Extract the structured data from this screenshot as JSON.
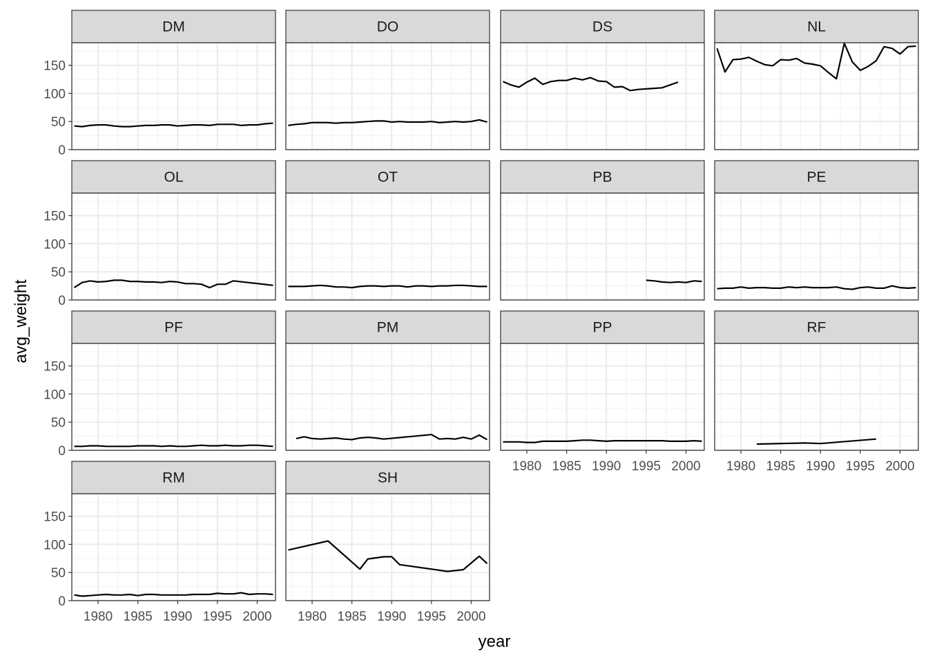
{
  "chart_data": {
    "type": "line",
    "layout": "facet_wrap",
    "ncol": 4,
    "xlabel": "year",
    "ylabel": "avg_weight",
    "xlim": [
      1976.7,
      2002.3
    ],
    "ylim": [
      0,
      190
    ],
    "xticks": [
      1980,
      1985,
      1990,
      1995,
      2000
    ],
    "yticks": [
      0,
      50,
      100,
      150
    ],
    "grid": true,
    "colors": {
      "line": "#000000",
      "panel_border": "#333333",
      "strip_fill": "#d9d9d9",
      "grid_major": "#ebebeb",
      "grid_minor": "#f2f2f2",
      "tick_text": "#4d4d4d"
    },
    "panels": [
      {
        "label": "DM",
        "x": [
          1977,
          1978,
          1979,
          1980,
          1981,
          1982,
          1983,
          1984,
          1985,
          1986,
          1987,
          1988,
          1989,
          1990,
          1991,
          1992,
          1993,
          1994,
          1995,
          1996,
          1997,
          1998,
          1999,
          2000,
          2001,
          2002
        ],
        "y": [
          42,
          41,
          43,
          44,
          44,
          42,
          41,
          41,
          42,
          43,
          43,
          44,
          44,
          42,
          43,
          44,
          44,
          43,
          45,
          45,
          45,
          43,
          44,
          44,
          46,
          47
        ]
      },
      {
        "label": "DO",
        "x": [
          1977,
          1978,
          1979,
          1980,
          1981,
          1982,
          1983,
          1984,
          1985,
          1986,
          1987,
          1988,
          1989,
          1990,
          1991,
          1992,
          1993,
          1994,
          1995,
          1996,
          1997,
          1998,
          1999,
          2000,
          2001,
          2002
        ],
        "y": [
          43,
          45,
          46,
          48,
          48,
          48,
          47,
          48,
          48,
          49,
          50,
          51,
          51,
          49,
          50,
          49,
          49,
          49,
          50,
          48,
          49,
          50,
          49,
          50,
          53,
          49
        ]
      },
      {
        "label": "DS",
        "x": [
          1977,
          1978,
          1979,
          1980,
          1981,
          1982,
          1983,
          1984,
          1985,
          1986,
          1987,
          1988,
          1989,
          1990,
          1991,
          1992,
          1993,
          1994,
          1995,
          1996,
          1997,
          1998,
          1999
        ],
        "y": [
          121,
          115,
          111,
          120,
          127,
          116,
          121,
          123,
          123,
          127,
          124,
          128,
          122,
          121,
          111,
          112,
          105,
          107,
          108,
          109,
          110,
          115,
          120
        ]
      },
      {
        "label": "NL",
        "x": [
          1977,
          1978,
          1979,
          1980,
          1981,
          1982,
          1983,
          1984,
          1985,
          1986,
          1987,
          1988,
          1989,
          1990,
          1991,
          1992,
          1993,
          1994,
          1995,
          1996,
          1997,
          1998,
          1999,
          2000,
          2001,
          2002
        ],
        "y": [
          180,
          138,
          160,
          161,
          164,
          157,
          151,
          149,
          160,
          159,
          162,
          154,
          152,
          149,
          137,
          126,
          189,
          156,
          141,
          148,
          158,
          183,
          180,
          170,
          183,
          184
        ]
      },
      {
        "label": "OL",
        "x": [
          1977,
          1978,
          1979,
          1980,
          1981,
          1982,
          1983,
          1984,
          1985,
          1986,
          1987,
          1988,
          1989,
          1990,
          1991,
          1992,
          1993,
          1994,
          1995,
          1996,
          1997,
          2002
        ],
        "y": [
          22,
          31,
          34,
          32,
          33,
          35,
          35,
          33,
          33,
          32,
          32,
          31,
          33,
          32,
          29,
          29,
          28,
          22,
          28,
          28,
          34,
          26
        ]
      },
      {
        "label": "OT",
        "x": [
          1977,
          1978,
          1979,
          1980,
          1981,
          1982,
          1983,
          1984,
          1985,
          1986,
          1987,
          1988,
          1989,
          1990,
          1991,
          1992,
          1993,
          1994,
          1995,
          1996,
          1997,
          1998,
          1999,
          2000,
          2001,
          2002
        ],
        "y": [
          24,
          24,
          24,
          25,
          26,
          25,
          23,
          23,
          22,
          24,
          25,
          25,
          24,
          25,
          25,
          23,
          25,
          25,
          24,
          25,
          25,
          26,
          26,
          25,
          24,
          24
        ]
      },
      {
        "label": "PB",
        "x": [
          1995,
          1996,
          1997,
          1998,
          1999,
          2000,
          2001,
          2002
        ],
        "y": [
          35,
          34,
          32,
          31,
          32,
          31,
          34,
          33
        ]
      },
      {
        "label": "PE",
        "x": [
          1977,
          1978,
          1979,
          1980,
          1981,
          1982,
          1983,
          1984,
          1985,
          1986,
          1987,
          1988,
          1989,
          1990,
          1991,
          1992,
          1993,
          1994,
          1995,
          1996,
          1997,
          1998,
          1999,
          2000,
          2001,
          2002
        ],
        "y": [
          20,
          21,
          21,
          23,
          21,
          22,
          22,
          21,
          21,
          23,
          22,
          23,
          22,
          22,
          22,
          23,
          20,
          19,
          22,
          23,
          21,
          21,
          25,
          22,
          21,
          22
        ]
      },
      {
        "label": "PF",
        "x": [
          1977,
          1978,
          1979,
          1980,
          1981,
          1982,
          1983,
          1984,
          1985,
          1986,
          1987,
          1988,
          1989,
          1990,
          1991,
          1992,
          1993,
          1994,
          1995,
          1996,
          1997,
          1998,
          1999,
          2000,
          2001,
          2002
        ],
        "y": [
          7,
          7,
          8,
          8,
          7,
          7,
          7,
          7,
          8,
          8,
          8,
          7,
          8,
          7,
          7,
          8,
          9,
          8,
          8,
          9,
          8,
          8,
          9,
          9,
          8,
          7
        ]
      },
      {
        "label": "PM",
        "x": [
          1978,
          1979,
          1980,
          1981,
          1982,
          1983,
          1984,
          1985,
          1986,
          1987,
          1988,
          1989,
          1995,
          1996,
          1997,
          1998,
          1999,
          2000,
          2001,
          2002
        ],
        "y": [
          21,
          24,
          21,
          20,
          21,
          22,
          20,
          19,
          22,
          23,
          22,
          20,
          28,
          20,
          21,
          20,
          23,
          20,
          27,
          19
        ]
      },
      {
        "label": "PP",
        "x": [
          1977,
          1978,
          1979,
          1980,
          1981,
          1982,
          1983,
          1984,
          1985,
          1986,
          1987,
          1988,
          1989,
          1990,
          1991,
          1992,
          1993,
          1994,
          1995,
          1996,
          1997,
          1998,
          1999,
          2000,
          2001,
          2002
        ],
        "y": [
          15,
          15,
          15,
          14,
          14,
          16,
          16,
          16,
          16,
          17,
          18,
          18,
          17,
          16,
          17,
          17,
          17,
          17,
          17,
          17,
          17,
          16,
          16,
          16,
          17,
          16
        ]
      },
      {
        "label": "RF",
        "x": [
          1982,
          1988,
          1990,
          1997
        ],
        "y": [
          11,
          13,
          12,
          20
        ]
      },
      {
        "label": "RM",
        "x": [
          1977,
          1978,
          1979,
          1980,
          1981,
          1982,
          1983,
          1984,
          1985,
          1986,
          1987,
          1988,
          1989,
          1990,
          1991,
          1992,
          1993,
          1994,
          1995,
          1996,
          1997,
          1998,
          1999,
          2000,
          2001,
          2002
        ],
        "y": [
          10,
          8,
          9,
          10,
          11,
          10,
          10,
          11,
          9,
          11,
          11,
          10,
          10,
          10,
          10,
          11,
          11,
          11,
          13,
          12,
          12,
          14,
          11,
          12,
          12,
          11
        ]
      },
      {
        "label": "SH",
        "x": [
          1977,
          1982,
          1986,
          1987,
          1989,
          1990,
          1991,
          1997,
          1999,
          2001,
          2002
        ],
        "y": [
          90,
          106,
          56,
          74,
          78,
          78,
          64,
          52,
          55,
          79,
          66
        ]
      }
    ]
  }
}
